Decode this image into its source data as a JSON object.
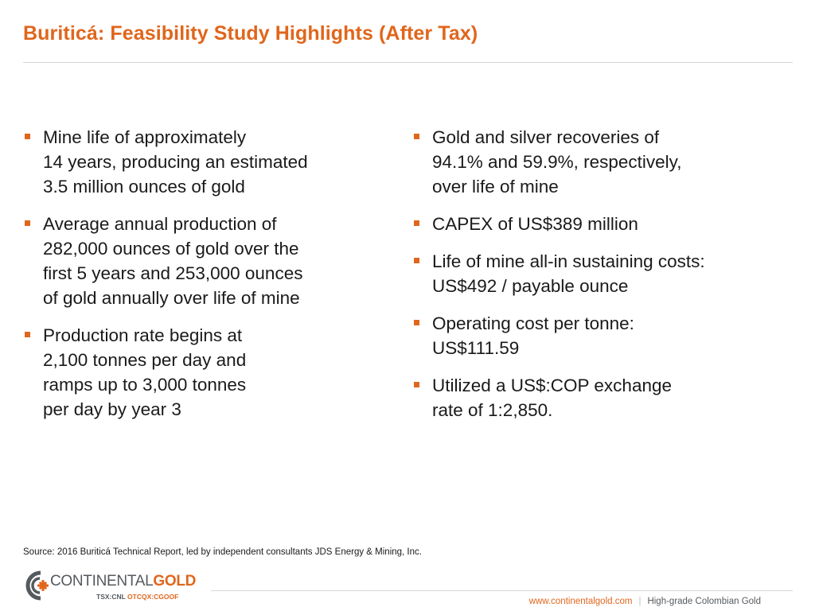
{
  "slide": {
    "title": "Buriticá: Feasibility Study Highlights (After Tax)"
  },
  "left_bullets": [
    {
      "lines": [
        "Mine life of approximately",
        "14 years, producing an estimated",
        "3.5 million ounces of gold"
      ]
    },
    {
      "lines": [
        "Average annual production of",
        "282,000 ounces of gold over the",
        "first 5 years and 253,000 ounces",
        "of gold annually over life of mine"
      ]
    },
    {
      "lines": [
        "Production rate begins at",
        "2,100 tonnes per day and",
        "ramps up to 3,000 tonnes",
        "per day by year 3"
      ]
    }
  ],
  "right_bullets": [
    {
      "lines": [
        "Gold and silver recoveries of",
        "94.1% and 59.9%, respectively,",
        "over life of mine"
      ]
    },
    {
      "lines": [
        "CAPEX of US$389 million"
      ]
    },
    {
      "lines": [
        "Life of mine all-in sustaining costs:",
        "US$492 / payable ounce"
      ]
    },
    {
      "lines": [
        "Operating cost per tonne:",
        "US$111.59"
      ]
    },
    {
      "lines": [
        "Utilized a US$:COP exchange",
        "rate of 1:2,850."
      ]
    }
  ],
  "source": "Source: 2016 Buriticá Technical Report, led by independent consultants JDS Energy & Mining, Inc.",
  "logo": {
    "word1": "CONTINENTAL",
    "word2": "GOLD",
    "ticker1": "TSX:CNL ",
    "ticker2": "OTCQX:CGOOF"
  },
  "footer": {
    "url": "www.continentalgold.com",
    "separator": "|",
    "tagline": "High-grade Colombian Gold"
  },
  "colors": {
    "accent": "#e0661c",
    "text": "#1a1a1a",
    "logo_grey": "#555a5f",
    "rule": "#d6d6d6"
  }
}
